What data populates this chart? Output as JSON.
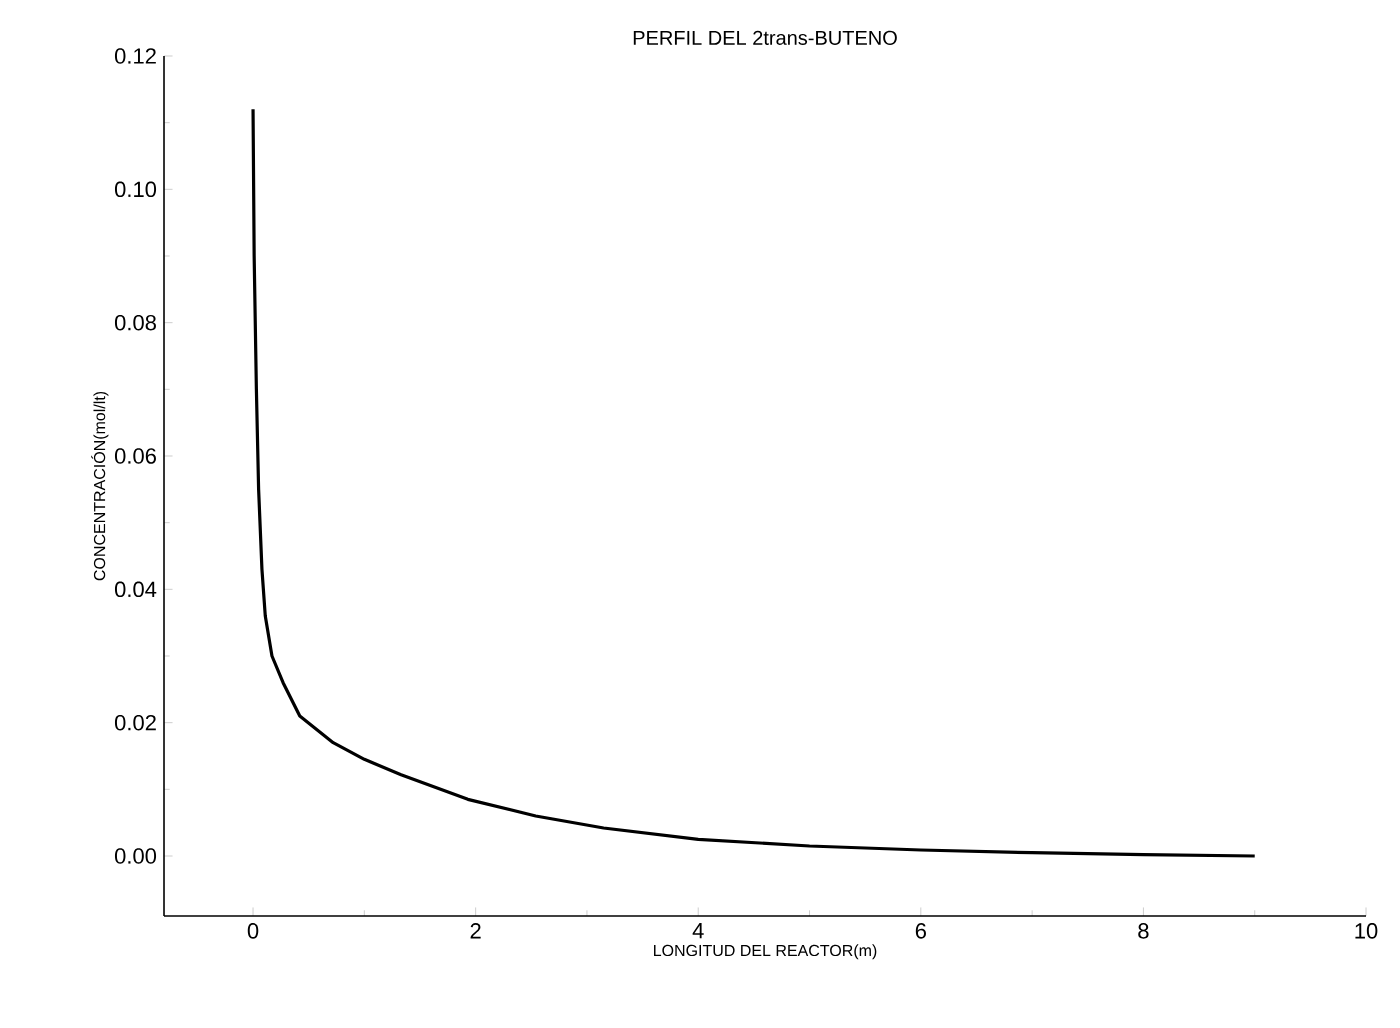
{
  "chart_data": {
    "type": "line",
    "title": "PERFIL DEL 2trans-BUTENO",
    "xlabel": "LONGITUD DEL REACTOR(m)",
    "ylabel": "CONCENTRACIÓN(mol/lt)",
    "x": [
      0,
      0.01,
      0.03,
      0.05,
      0.08,
      0.11,
      0.17,
      0.27,
      0.42,
      0.72,
      1.0,
      1.33,
      1.93,
      2.54,
      3.15,
      4.0,
      5.0,
      6.0,
      7.0,
      8.0,
      9.0
    ],
    "values": [
      0.112,
      0.09,
      0.07,
      0.055,
      0.043,
      0.036,
      0.03,
      0.026,
      0.021,
      0.017,
      0.0145,
      0.0122,
      0.0085,
      0.006,
      0.0042,
      0.0025,
      0.0015,
      0.0009,
      0.0005,
      0.0002,
      0.0
    ],
    "color": "#000000",
    "line_style": "solid",
    "xlim": [
      -0.8,
      10
    ],
    "ylim": [
      -0.009,
      0.12
    ],
    "xticks": [
      0,
      2,
      4,
      6,
      8,
      10
    ],
    "yticks": [
      {
        "value": 0,
        "label": "0.00"
      },
      {
        "value": 0.02,
        "label": "0.02"
      },
      {
        "value": 0.04,
        "label": "0.04"
      },
      {
        "value": 0.06,
        "label": "0.06"
      },
      {
        "value": 0.08,
        "label": "0.08"
      },
      {
        "value": 0.1,
        "label": "0.10"
      },
      {
        "value": 0.12,
        "label": "0.12"
      }
    ]
  }
}
